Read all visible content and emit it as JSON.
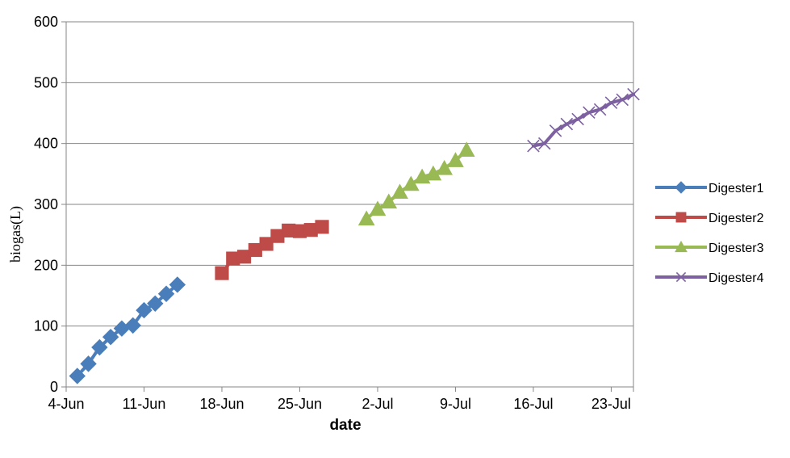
{
  "chart_data": {
    "type": "line",
    "title": "",
    "xlabel": "date",
    "ylabel": "biogas(L)",
    "x_type": "date",
    "xlim": [
      "2012-06-04",
      "2012-07-25"
    ],
    "x_tick_values": [
      "2012-06-04",
      "2012-06-11",
      "2012-06-18",
      "2012-06-25",
      "2012-07-02",
      "2012-07-09",
      "2012-07-16",
      "2012-07-23"
    ],
    "x_tick_labels": [
      "4-Jun",
      "11-Jun",
      "18-Jun",
      "25-Jun",
      "2-Jul",
      "9-Jul",
      "16-Jul",
      "23-Jul"
    ],
    "ylim": [
      0,
      600
    ],
    "y_ticks": [
      0,
      100,
      200,
      300,
      400,
      500,
      600
    ],
    "grid": "horizontal",
    "legend_position": "right",
    "series": [
      {
        "name": "Digester1",
        "color": "#4a7ebb",
        "marker": "diamond",
        "x": [
          "2012-06-05",
          "2012-06-06",
          "2012-06-07",
          "2012-06-08",
          "2012-06-09",
          "2012-06-10",
          "2012-06-11",
          "2012-06-12",
          "2012-06-13",
          "2012-06-14"
        ],
        "y": [
          18,
          38,
          65,
          82,
          96,
          101,
          126,
          137,
          153,
          168
        ]
      },
      {
        "name": "Digester2",
        "color": "#be4b48",
        "marker": "square",
        "x": [
          "2012-06-18",
          "2012-06-19",
          "2012-06-20",
          "2012-06-21",
          "2012-06-22",
          "2012-06-23",
          "2012-06-24",
          "2012-06-25",
          "2012-06-26",
          "2012-06-27"
        ],
        "y": [
          187,
          211,
          214,
          225,
          235,
          248,
          257,
          256,
          258,
          263
        ]
      },
      {
        "name": "Digester3",
        "color": "#98b954",
        "marker": "triangle",
        "x": [
          "2012-07-01",
          "2012-07-02",
          "2012-07-03",
          "2012-07-04",
          "2012-07-05",
          "2012-07-06",
          "2012-07-07",
          "2012-07-08",
          "2012-07-09",
          "2012-07-10"
        ],
        "y": [
          276,
          292,
          304,
          320,
          333,
          345,
          350,
          359,
          372,
          389
        ]
      },
      {
        "name": "Digester4",
        "color": "#7d60a0",
        "marker": "x",
        "x": [
          "2012-07-16",
          "2012-07-17",
          "2012-07-18",
          "2012-07-19",
          "2012-07-20",
          "2012-07-21",
          "2012-07-22",
          "2012-07-23",
          "2012-07-24",
          "2012-07-25"
        ],
        "y": [
          396,
          400,
          421,
          432,
          440,
          451,
          456,
          467,
          472,
          481
        ]
      }
    ]
  }
}
